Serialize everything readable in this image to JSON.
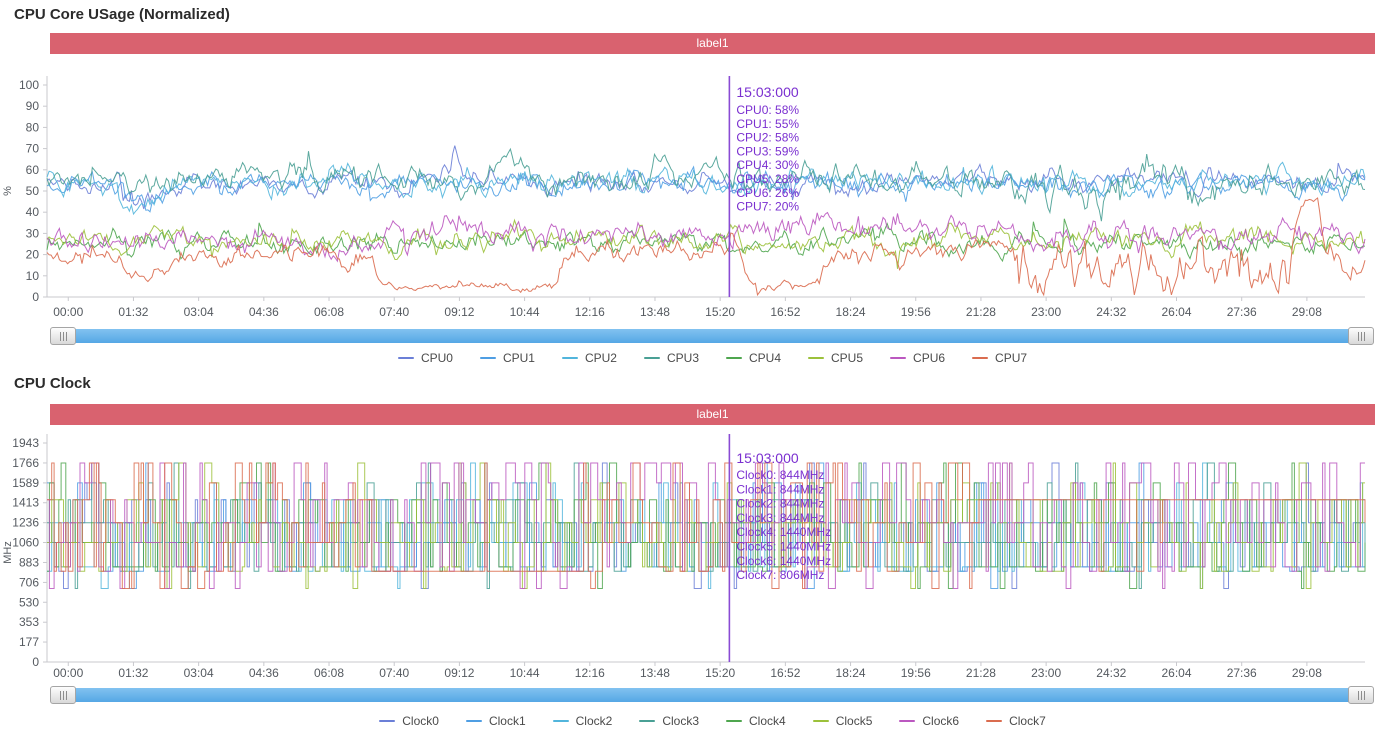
{
  "app": {
    "background": "#ffffff"
  },
  "colors": {
    "banner": "#d9626f",
    "banner_text": "#ffffff",
    "cursor_line": "#8a4bd4",
    "tooltip_text": "#7a2fd0",
    "axis_line": "#c9c9ce",
    "axis_text": "#555a60",
    "scrollbar_blue": "#5cabe8",
    "series_palette": [
      "#6b7fd7",
      "#4f9ee3",
      "#52b5dc",
      "#4aa095",
      "#4fa64f",
      "#9cc13b",
      "#bb58c0",
      "#da6c4f"
    ]
  },
  "chart_data": [
    {
      "type": "line",
      "title": "CPU Core USage (Normalized)",
      "banner_label": "label1",
      "ylabel": "%",
      "ylim": [
        0,
        100
      ],
      "yticks": [
        0,
        10,
        20,
        30,
        40,
        50,
        60,
        70,
        80,
        90,
        100
      ],
      "x_tick_labels": [
        "00:00",
        "01:32",
        "03:04",
        "04:36",
        "06:08",
        "07:40",
        "09:12",
        "10:44",
        "12:16",
        "13:48",
        "15:20",
        "16:52",
        "18:24",
        "19:56",
        "21:28",
        "23:00",
        "24:32",
        "26:04",
        "27:36",
        "29:08"
      ],
      "x_tick_interval_seconds": 92,
      "x_range_seconds": [
        -30,
        1830
      ],
      "grid": false,
      "legend_position": "bottom",
      "cursor": {
        "time_label": "15:03:000",
        "t_seconds": 903,
        "readout": [
          "CPU0: 58%",
          "CPU1: 55%",
          "CPU2: 58%",
          "CPU3: 59%",
          "CPU4: 30%",
          "CPU5: 28%",
          "CPU6: 26%",
          "CPU7: 20%"
        ]
      },
      "series": [
        {
          "name": "CPU0",
          "color": "#6b7fd7",
          "value_at_cursor": 58,
          "segments": [
            [
              -30,
              75,
              54,
              3
            ],
            [
              75,
              130,
              45,
              4
            ],
            [
              130,
              1860,
              54,
              3.2
            ]
          ]
        },
        {
          "name": "CPU1",
          "color": "#4f9ee3",
          "value_at_cursor": 55,
          "segments": [
            [
              -30,
              75,
              53,
              3
            ],
            [
              75,
              135,
              43,
              4
            ],
            [
              135,
              1860,
              53,
              3.2
            ]
          ]
        },
        {
          "name": "CPU2",
          "color": "#52b5dc",
          "value_at_cursor": 58,
          "segments": [
            [
              -30,
              70,
              54,
              3
            ],
            [
              70,
              130,
              44,
              4
            ],
            [
              130,
              1860,
              54,
              3.4
            ]
          ]
        },
        {
          "name": "CPU3",
          "color": "#4aa095",
          "value_at_cursor": 59,
          "segments": [
            [
              -30,
              230,
              55,
              4
            ],
            [
              230,
              262,
              63,
              3
            ],
            [
              262,
              590,
              56,
              4
            ],
            [
              590,
              625,
              66,
              3
            ],
            [
              625,
              880,
              56,
              4
            ],
            [
              880,
              915,
              64,
              3
            ],
            [
              915,
              1330,
              56,
              4
            ],
            [
              1330,
              1620,
              53,
              7
            ],
            [
              1620,
              1860,
              56,
              4
            ]
          ]
        },
        {
          "name": "CPU4",
          "color": "#4fa64f",
          "value_at_cursor": 30,
          "segments": [
            [
              -30,
              1860,
              26,
              3.2
            ]
          ]
        },
        {
          "name": "CPU5",
          "color": "#9cc13b",
          "value_at_cursor": 28,
          "segments": [
            [
              -30,
              1860,
              27,
              3.2
            ]
          ]
        },
        {
          "name": "CPU6",
          "color": "#bb58c0",
          "value_at_cursor": 26,
          "segments": [
            [
              -30,
              430,
              27,
              3.6
            ],
            [
              430,
              700,
              31,
              4
            ],
            [
              700,
              950,
              28,
              3.6
            ],
            [
              950,
              1330,
              34,
              3.6
            ],
            [
              1330,
              1860,
              28,
              4
            ]
          ]
        },
        {
          "name": "CPU7",
          "color": "#da6c4f",
          "value_at_cursor": 20,
          "segments": [
            [
              -30,
              80,
              19,
              3
            ],
            [
              80,
              120,
              8,
              2
            ],
            [
              120,
              430,
              19,
              3
            ],
            [
              430,
              690,
              5,
              1.2
            ],
            [
              690,
              950,
              21,
              3.4
            ],
            [
              950,
              1058,
              6,
              1.5
            ],
            [
              1058,
              1320,
              20,
              3.2
            ],
            [
              1320,
              1420,
              13,
              7
            ],
            [
              1420,
              1560,
              12,
              8
            ],
            [
              1560,
              1723,
              15,
              8
            ],
            [
              1723,
              1766,
              46,
              1.5
            ],
            [
              1766,
              1860,
              18,
              4
            ]
          ]
        }
      ]
    },
    {
      "type": "line",
      "title": "CPU Clock",
      "banner_label": "label1",
      "ylabel": "MHz",
      "ylim": [
        0,
        1943
      ],
      "yticks": [
        0,
        177,
        353,
        530,
        706,
        883,
        1060,
        1236,
        1413,
        1589,
        1766,
        1943
      ],
      "x_tick_labels": [
        "00:00",
        "01:32",
        "03:04",
        "04:36",
        "06:08",
        "07:40",
        "09:12",
        "10:44",
        "12:16",
        "13:48",
        "15:20",
        "16:52",
        "18:24",
        "19:56",
        "21:28",
        "23:00",
        "24:32",
        "26:04",
        "27:36",
        "29:08"
      ],
      "x_tick_interval_seconds": 92,
      "x_range_seconds": [
        -30,
        1830
      ],
      "grid": false,
      "legend_position": "bottom",
      "frequency_levels_mhz": [
        652,
        806,
        844,
        1060,
        1236,
        1440,
        1589,
        1766
      ],
      "cursor": {
        "time_label": "15:03:000",
        "t_seconds": 903,
        "readout": [
          "Clock0: 844MHz",
          "Clock1: 844MHz",
          "Clock2: 844MHz",
          "Clock3: 844MHz",
          "Clock4: 1440MHz",
          "Clock5: 1440MHz",
          "Clock6: 1440MHz",
          "Clock7: 806MHz"
        ]
      },
      "series": [
        {
          "name": "Clock0",
          "color": "#6b7fd7",
          "value_at_cursor": 844,
          "weights": [
            0.02,
            0.1,
            0.18,
            0.3,
            0.22,
            0.12,
            0.04,
            0.02
          ],
          "segments": []
        },
        {
          "name": "Clock1",
          "color": "#4f9ee3",
          "value_at_cursor": 844,
          "weights": [
            0.02,
            0.1,
            0.18,
            0.3,
            0.22,
            0.12,
            0.04,
            0.02
          ],
          "segments": []
        },
        {
          "name": "Clock2",
          "color": "#52b5dc",
          "value_at_cursor": 844,
          "weights": [
            0.02,
            0.1,
            0.18,
            0.3,
            0.22,
            0.12,
            0.04,
            0.02
          ],
          "segments": []
        },
        {
          "name": "Clock3",
          "color": "#4aa095",
          "value_at_cursor": 844,
          "weights": [
            0.01,
            0.06,
            0.14,
            0.34,
            0.3,
            0.1,
            0.03,
            0.02
          ],
          "segments": []
        },
        {
          "name": "Clock4",
          "color": "#4fa64f",
          "value_at_cursor": 1440,
          "weights": [
            0.02,
            0.08,
            0.16,
            0.24,
            0.22,
            0.18,
            0.06,
            0.04
          ],
          "segments": []
        },
        {
          "name": "Clock5",
          "color": "#9cc13b",
          "value_at_cursor": 1440,
          "weights": [
            0.02,
            0.08,
            0.16,
            0.24,
            0.22,
            0.18,
            0.06,
            0.04
          ],
          "segments": []
        },
        {
          "name": "Clock6",
          "color": "#bb58c0",
          "value_at_cursor": 1440,
          "weights": [
            0.05,
            0.08,
            0.1,
            0.14,
            0.16,
            0.18,
            0.12,
            0.17
          ],
          "segments": []
        },
        {
          "name": "Clock7",
          "color": "#da6c4f",
          "value_at_cursor": 806,
          "weights": [
            0.07,
            0.12,
            0.1,
            0.12,
            0.12,
            0.18,
            0.1,
            0.19
          ],
          "segments": [
            {
              "t0": 425,
              "t1": 688,
              "level": 806,
              "p": 0.85,
              "hold": 7
            },
            {
              "t0": 1285,
              "t1": 1860,
              "level": 1440,
              "p": 0.72,
              "hold": 6
            }
          ]
        }
      ]
    }
  ]
}
